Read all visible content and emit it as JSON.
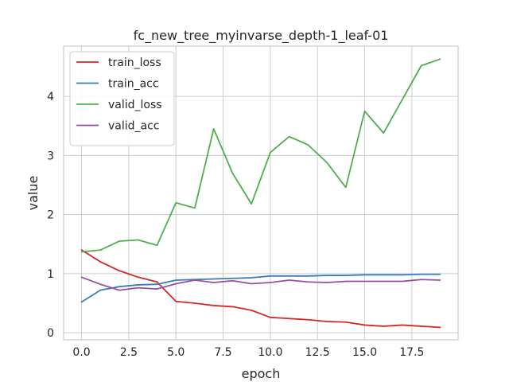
{
  "chart_data": {
    "type": "line",
    "title": "fc_new_tree_myinvarse_depth-1_leaf-01",
    "xlabel": "epoch",
    "ylabel": "value",
    "xlim": [
      -0.95,
      19.95
    ],
    "ylim": [
      -0.12,
      4.85
    ],
    "grid": true,
    "legend_position": "top-left",
    "x_ticks": [
      0,
      2.5,
      5,
      7.5,
      10,
      12.5,
      15,
      17.5
    ],
    "x_tick_labels": [
      "0.0",
      "2.5",
      "5.0",
      "7.5",
      "10.0",
      "12.5",
      "15.0",
      "17.5"
    ],
    "y_ticks": [
      0,
      1,
      2,
      3,
      4
    ],
    "y_tick_labels": [
      "0",
      "1",
      "2",
      "3",
      "4"
    ],
    "x": [
      0,
      1,
      2,
      3,
      4,
      5,
      6,
      7,
      8,
      9,
      10,
      11,
      12,
      13,
      14,
      15,
      16,
      17,
      18,
      19
    ],
    "series": [
      {
        "name": "train_loss",
        "color": "#d62728",
        "values": [
          1.4,
          1.2,
          1.05,
          0.94,
          0.86,
          0.53,
          0.5,
          0.46,
          0.44,
          0.38,
          0.26,
          0.24,
          0.22,
          0.19,
          0.18,
          0.13,
          0.11,
          0.13,
          0.11,
          0.09
        ]
      },
      {
        "name": "train_acc",
        "color": "#377eb8",
        "values": [
          0.52,
          0.72,
          0.78,
          0.81,
          0.82,
          0.89,
          0.9,
          0.91,
          0.92,
          0.93,
          0.96,
          0.96,
          0.96,
          0.97,
          0.97,
          0.98,
          0.98,
          0.98,
          0.99,
          0.99
        ]
      },
      {
        "name": "valid_loss",
        "color": "#4daf4a",
        "values": [
          1.37,
          1.4,
          1.55,
          1.57,
          1.48,
          2.2,
          2.11,
          3.45,
          2.7,
          2.18,
          3.05,
          3.32,
          3.18,
          2.88,
          2.46,
          3.75,
          3.38,
          3.95,
          4.52,
          4.63
        ]
      },
      {
        "name": "valid_acc",
        "color": "#984ea3",
        "values": [
          0.94,
          0.82,
          0.72,
          0.76,
          0.74,
          0.83,
          0.89,
          0.85,
          0.88,
          0.83,
          0.85,
          0.89,
          0.86,
          0.85,
          0.87,
          0.87,
          0.87,
          0.87,
          0.9,
          0.89
        ]
      }
    ]
  }
}
